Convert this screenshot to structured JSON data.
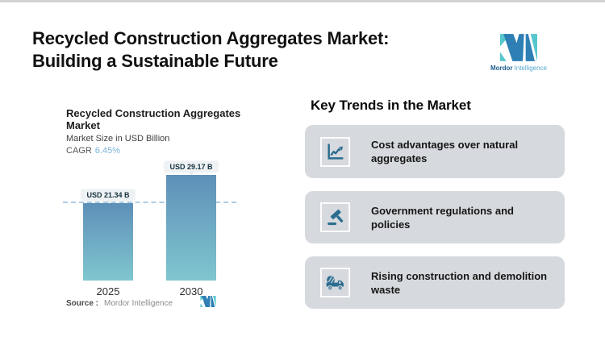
{
  "header": {
    "title": "Recycled Construction Aggregates Market:\nBuilding a Sustainable Future",
    "logo": {
      "brand_bold": "Mordor",
      "brand_light": "Intelligence"
    }
  },
  "chart": {
    "title": "Recycled Construction Aggregates\nMarket",
    "subtitle": "Market Size in USD Billion",
    "cagr_label": "CAGR",
    "cagr_value": "6.45%",
    "source_label": "Source :",
    "source_value": "Mordor Intelligence"
  },
  "chart_data": {
    "type": "bar",
    "title": "Recycled Construction Aggregates Market",
    "subtitle": "Market Size in USD Billion",
    "unit": "USD Billion",
    "cagr": "6.45%",
    "categories": [
      "2025",
      "2030"
    ],
    "values": [
      21.34,
      29.17
    ],
    "value_labels": [
      "USD 21.34 B",
      "USD 29.17 B"
    ],
    "ylim": [
      0,
      34
    ],
    "grid": false,
    "reference_line": {
      "at_value": 21.34,
      "style": "dashed"
    },
    "bar_gradient": [
      "#5e90b8",
      "#80c6cf"
    ]
  },
  "trends": {
    "heading": "Key Trends in the Market",
    "items": [
      {
        "icon": "trend-chart-icon",
        "label": "Cost advantages over natural\naggregates"
      },
      {
        "icon": "gavel-icon",
        "label": "Government regulations and policies"
      },
      {
        "icon": "mixer-truck-icon",
        "label": "Rising construction and demolition\nwaste"
      }
    ]
  },
  "colors": {
    "accent_blue": "#2d7fb4",
    "accent_teal": "#56c6ce",
    "icon": "#2a6d90",
    "card_bg": "#d6d9dd",
    "dash": "#aecbe3",
    "cagr": "#7db4d8",
    "pill_bg": "#eef2f4",
    "text_gray": "#555555",
    "source_gray": "#8a8a8a",
    "brand_dark": "#1b5c8e",
    "brand_light": "#55a7cf"
  }
}
